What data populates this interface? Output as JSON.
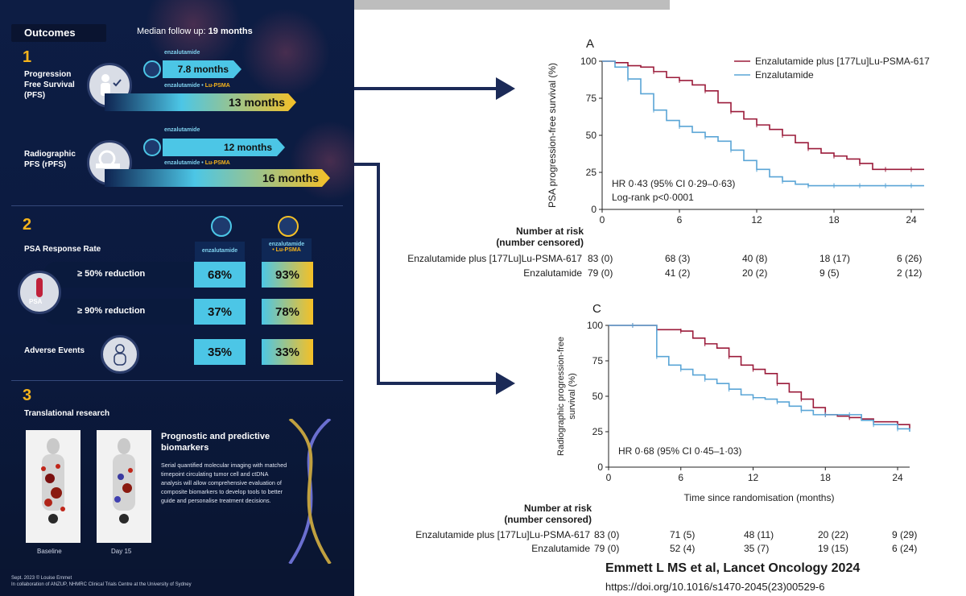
{
  "infographic": {
    "title": "Outcomes",
    "followup_label": "Median follow up:",
    "followup_value": "19 months",
    "section1": {
      "number": "1",
      "pfs_label": "Progression Free Survival (PFS)",
      "rpfs_label": "Radiographic PFS (rPFS)",
      "arm_enz": "enzalutamide",
      "arm_combo_a": "enzalutamide",
      "arm_combo_b": "Lu-PSMA",
      "pfs_enz": "7.8 months",
      "pfs_combo": "13 months",
      "rpfs_enz": "12 months",
      "rpfs_combo": "16 months"
    },
    "section2": {
      "number": "2",
      "label": "PSA Response Rate",
      "col_enz": "enzalutamide",
      "col_combo_a": "enzalutamide",
      "col_combo_b": "Lu-PSMA",
      "psa_badge": "PSA",
      "rows": [
        {
          "label": "≥ 50% reduction",
          "enz": "68%",
          "combo": "93%"
        },
        {
          "label": "≥ 90% reduction",
          "enz": "37%",
          "combo": "78%"
        },
        {
          "label": "Adverse Events",
          "enz": "35%",
          "combo": "33%"
        }
      ]
    },
    "section3": {
      "number": "3",
      "label": "Translational research",
      "bio_title": "Prognostic and predictive biomarkers",
      "bio_body": "Serial quantified molecular imaging with matched timepoint circulating tumor cell and ctDNA analysis will allow comprehensive evaluation of composite biomarkers to develop tools to better guide and personalise treatment decisions.",
      "scan1": "Baseline",
      "scan2": "Day 15"
    },
    "footer_line1": "Sept. 2023 © Louise Emmet",
    "footer_line2": "In collaboration of ANZUP, NHMRC Clinical Trials Centre at the University of Sydney"
  },
  "panel_a": {
    "letter": "A",
    "ylabel": "PSA progression-free survival (%)",
    "stats": "HR 0·43 (95% CI 0·29–0·63)",
    "stats2": "Log-rank p<0·0001",
    "legend": [
      "Enzalutamide plus [177Lu]Lu-PSMA-617",
      "Enzalutamide"
    ],
    "risk_title": "Number at risk",
    "risk_sub": "(number censored)",
    "risk_rows": [
      {
        "label": "Enzalutamide plus [177Lu]Lu-PSMA-617",
        "values": [
          "83 (0)",
          "68 (3)",
          "40 (8)",
          "18 (17)",
          "6 (26)"
        ]
      },
      {
        "label": "Enzalutamide",
        "values": [
          "79 (0)",
          "41 (2)",
          "20 (2)",
          "9 (5)",
          "2 (12)"
        ]
      }
    ]
  },
  "panel_c": {
    "letter": "C",
    "ylabel1": "Radiographic progression-free",
    "ylabel2": "survival (%)",
    "stats": "HR 0·68 (95% CI 0·45–1·03)",
    "xlabel": "Time since randomisation (months)",
    "risk_title": "Number at risk",
    "risk_sub": "(number censored)",
    "risk_rows": [
      {
        "label": "Enzalutamide plus [177Lu]Lu-PSMA-617",
        "values": [
          "83 (0)",
          "71 (5)",
          "48 (11)",
          "20 (22)",
          "9 (29)"
        ]
      },
      {
        "label": "Enzalutamide",
        "values": [
          "79 (0)",
          "52 (4)",
          "35 (7)",
          "19 (15)",
          "6 (24)"
        ]
      }
    ]
  },
  "citation": "Emmett L MS et al, Lancet Oncology 2024",
  "doi": "https://doi.org/10.1016/s1470-2045(23)00529-6",
  "colors": {
    "combo": "#9b1b3a",
    "enz": "#5aa5d6",
    "gold": "#f5b31b",
    "cyan": "#4cc6e6",
    "navy": "#0d1d44"
  },
  "chart_data": [
    {
      "type": "line",
      "title": "A",
      "xlabel": "",
      "ylabel": "PSA progression-free survival (%)",
      "xlim": [
        0,
        25
      ],
      "ylim": [
        0,
        100
      ],
      "xticks": [
        0,
        6,
        12,
        18,
        24
      ],
      "yticks": [
        0,
        25,
        50,
        75,
        100
      ],
      "series": [
        {
          "name": "Enzalutamide plus [177Lu]Lu-PSMA-617",
          "color": "#9b1b3a",
          "x": [
            0,
            1,
            2,
            3,
            4,
            5,
            6,
            7,
            8,
            9,
            10,
            11,
            12,
            13,
            14,
            15,
            16,
            17,
            18,
            19,
            20,
            21,
            22,
            23,
            24,
            25
          ],
          "y": [
            100,
            99,
            97,
            96,
            93,
            89,
            87,
            84,
            80,
            72,
            66,
            61,
            57,
            54,
            50,
            45,
            41,
            38,
            36,
            34,
            31,
            27,
            27,
            27,
            27,
            27
          ]
        },
        {
          "name": "Enzalutamide",
          "color": "#5aa5d6",
          "x": [
            0,
            1,
            2,
            3,
            4,
            5,
            6,
            7,
            8,
            9,
            10,
            11,
            12,
            13,
            14,
            15,
            16,
            17,
            18,
            19,
            20,
            21,
            22,
            23,
            24,
            25
          ],
          "y": [
            100,
            96,
            88,
            78,
            67,
            60,
            56,
            52,
            49,
            46,
            40,
            33,
            27,
            22,
            19,
            17,
            16,
            16,
            16,
            16,
            16,
            16,
            16,
            16,
            16,
            16
          ]
        }
      ]
    },
    {
      "type": "line",
      "title": "C",
      "xlabel": "Time since randomisation (months)",
      "ylabel": "Radiographic progression-free survival (%)",
      "xlim": [
        0,
        25
      ],
      "ylim": [
        0,
        100
      ],
      "xticks": [
        0,
        6,
        12,
        18,
        24
      ],
      "yticks": [
        0,
        25,
        50,
        75,
        100
      ],
      "series": [
        {
          "name": "Enzalutamide plus [177Lu]Lu-PSMA-617",
          "color": "#9b1b3a",
          "x": [
            0,
            1,
            2,
            3,
            4,
            5,
            6,
            7,
            8,
            9,
            10,
            11,
            12,
            13,
            14,
            15,
            16,
            17,
            18,
            19,
            20,
            21,
            22,
            23,
            24,
            25
          ],
          "y": [
            100,
            100,
            100,
            100,
            97,
            97,
            96,
            91,
            87,
            84,
            78,
            72,
            69,
            66,
            59,
            53,
            48,
            42,
            37,
            36,
            35,
            34,
            32,
            32,
            30,
            27
          ]
        },
        {
          "name": "Enzalutamide",
          "color": "#5aa5d6",
          "x": [
            0,
            1,
            2,
            3,
            4,
            5,
            6,
            7,
            8,
            9,
            10,
            11,
            12,
            13,
            14,
            15,
            16,
            17,
            18,
            19,
            20,
            21,
            22,
            23,
            24,
            25
          ],
          "y": [
            100,
            100,
            100,
            100,
            78,
            72,
            69,
            65,
            62,
            59,
            55,
            51,
            49,
            48,
            46,
            43,
            40,
            37,
            37,
            37,
            37,
            33,
            30,
            30,
            27,
            25
          ]
        }
      ]
    }
  ]
}
